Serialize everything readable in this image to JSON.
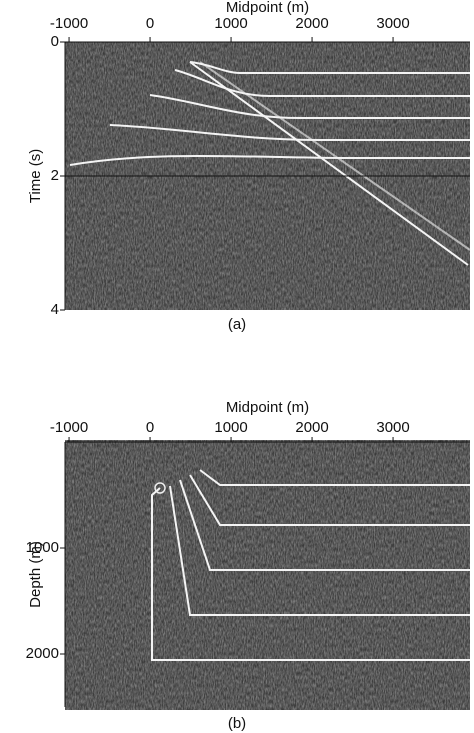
{
  "panels": [
    {
      "x_axis": {
        "label": "Midpoint (m)",
        "lim": [
          -1050,
          3950
        ],
        "ticks": [
          -1000,
          0,
          1000,
          2000,
          3000
        ]
      },
      "y_axis": {
        "label": "Time (s)",
        "lim": [
          0,
          4
        ],
        "ticks": [
          0,
          2,
          4
        ]
      },
      "caption": "(a)"
    },
    {
      "x_axis": {
        "label": "Midpoint (m)",
        "lim": [
          -1050,
          3950
        ],
        "ticks": [
          -1000,
          0,
          1000,
          2000,
          3000
        ]
      },
      "y_axis": {
        "label": "Depth (m)",
        "lim": [
          0,
          2500
        ],
        "ticks": [
          1000,
          2000
        ]
      },
      "caption": "(b)"
    }
  ]
}
